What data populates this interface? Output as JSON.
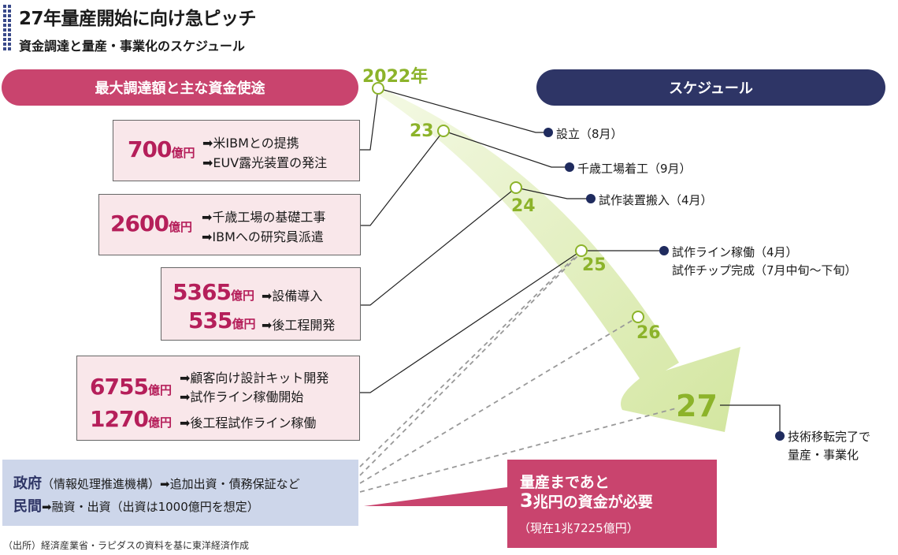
{
  "title": "27年量産開始に向け急ピッチ",
  "subtitle": "資金調達と量産・事業化のスケジュール",
  "left_header": "最大調達額と主な資金使途",
  "right_header": "スケジュール",
  "funding": [
    {
      "rows": [
        {
          "amount": "700",
          "unit": "億円",
          "uses": [
            "➡米IBMとの提携",
            "➡EUV露光装置の発注"
          ]
        }
      ]
    },
    {
      "rows": [
        {
          "amount": "2600",
          "unit": "億円",
          "uses": [
            "➡千歳工場の基礎工事",
            "➡IBMへの研究員派遣"
          ]
        }
      ]
    },
    {
      "rows": [
        {
          "amount": "5365",
          "unit": "億円",
          "uses": [
            "➡設備導入"
          ]
        },
        {
          "amount": "535",
          "unit": "億円",
          "uses": [
            "➡後工程開発"
          ]
        }
      ]
    },
    {
      "rows": [
        {
          "amount": "6755",
          "unit": "億円",
          "uses": [
            "➡顧客向け設計キット開発",
            "➡試作ライン稼働開始"
          ]
        },
        {
          "amount": "1270",
          "unit": "億円",
          "uses": [
            "➡後工程試作ライン稼働"
          ]
        }
      ]
    }
  ],
  "years": [
    "2022年",
    "23",
    "24",
    "25",
    "26",
    "27"
  ],
  "schedule": [
    {
      "text": "設立（8月）"
    },
    {
      "text": "千歳工場着工（9月）"
    },
    {
      "text": "試作装置搬入（4月）"
    },
    {
      "text": "試作ライン稼働（4月）",
      "text2": "試作チップ完成（7月中旬〜下旬）"
    },
    {
      "text": "技術移転完了で",
      "text2": "量産・事業化"
    }
  ],
  "government": {
    "line1_label": "政府",
    "line1_detail": "（情報処理推進機構）➡追加出資・債務保証など",
    "line2_label": "民間",
    "line2_detail": "➡融資・出資（出資は1000億円を想定）"
  },
  "callout": {
    "line1": "量産まであと",
    "line2_emph": "3",
    "line2_rest": "兆円の資金が必要",
    "line3": "（現在1兆7225億円）"
  },
  "source": "（出所）経済産業省・ラピダスの資料を基に東洋経済作成",
  "colors": {
    "pink": "#c9446e",
    "navy": "#2e3566",
    "green": "#8cb32a",
    "arrow": "#dcebb5",
    "blue_box": "#cdd6ea"
  }
}
